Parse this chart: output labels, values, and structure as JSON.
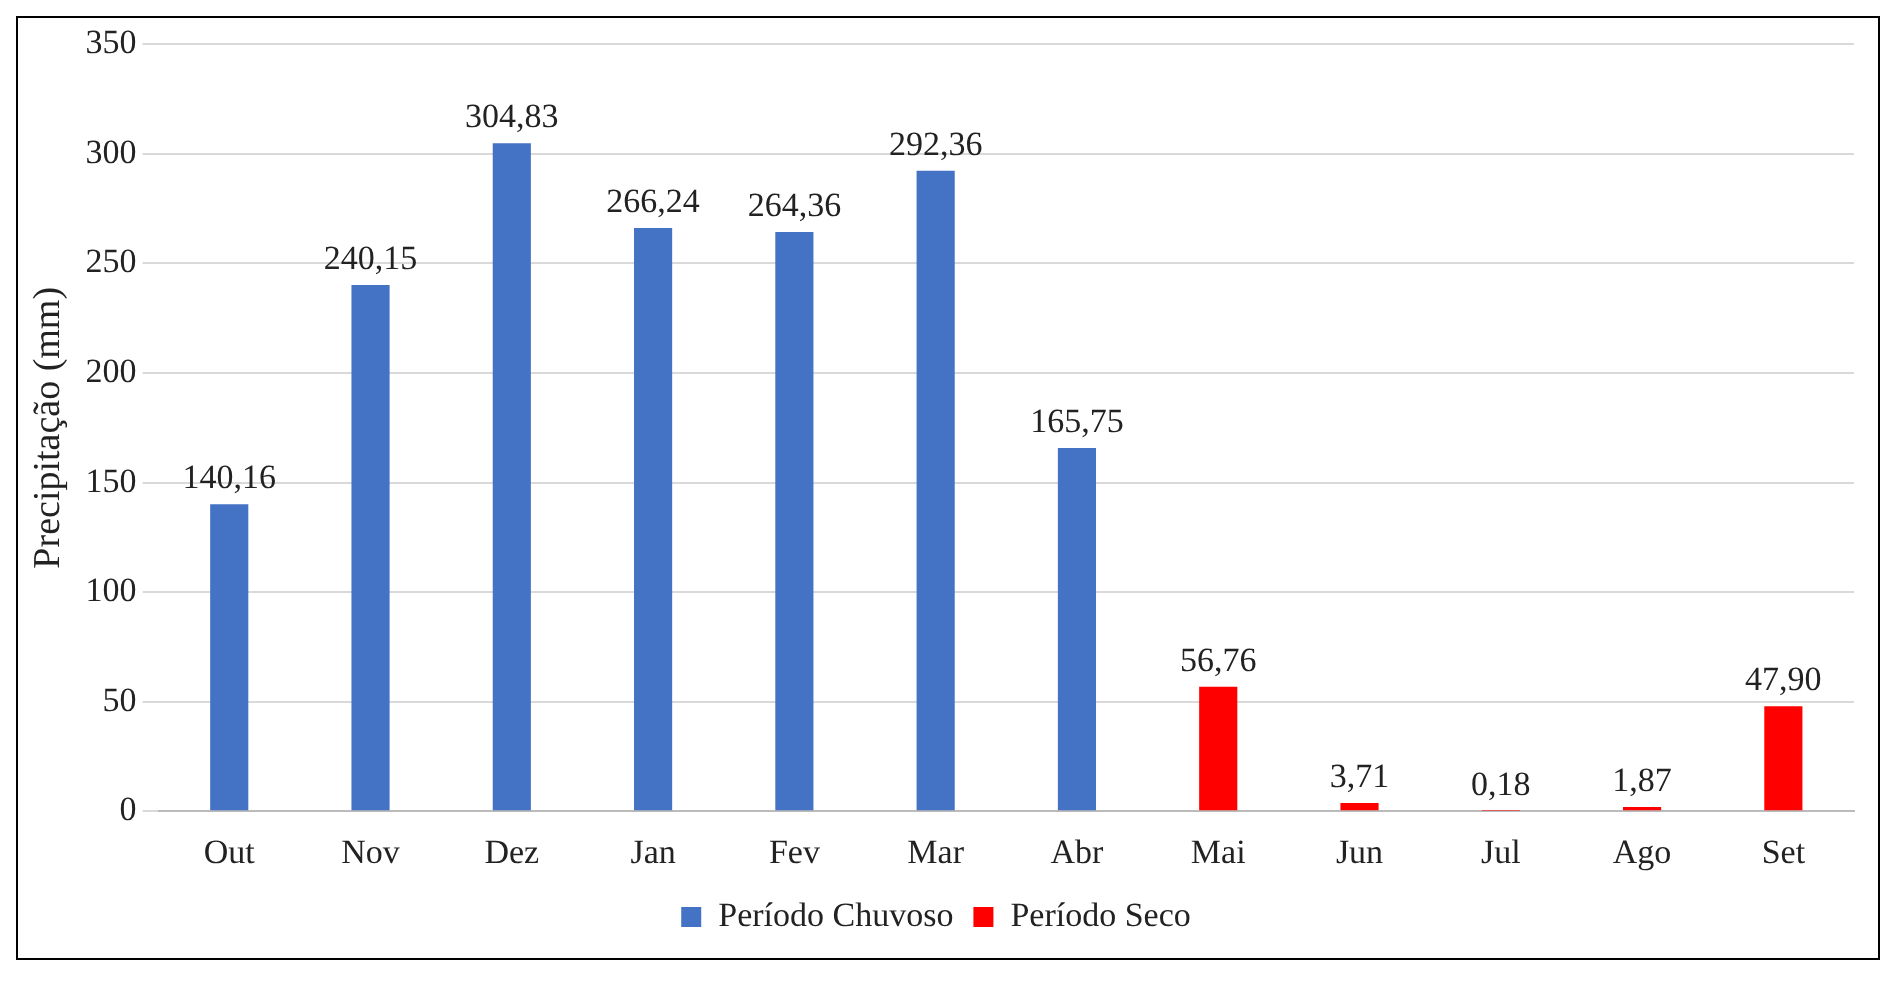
{
  "chart_data": {
    "type": "bar",
    "ylabel": "Precipitação (mm)",
    "categories": [
      "Out",
      "Nov",
      "Dez",
      "Jan",
      "Fev",
      "Mar",
      "Abr",
      "Mai",
      "Jun",
      "Jul",
      "Ago",
      "Set"
    ],
    "series": [
      {
        "name": "Período Chuvoso",
        "color": "#4472c4",
        "values": [
          140.16,
          240.15,
          304.83,
          266.24,
          264.36,
          292.36,
          165.75,
          null,
          null,
          null,
          null,
          null
        ],
        "value_labels": [
          "140,16",
          "240,15",
          "304,83",
          "266,24",
          "264,36",
          "292,36",
          "165,75",
          null,
          null,
          null,
          null,
          null
        ]
      },
      {
        "name": "Período Seco",
        "color": "#ff0000",
        "values": [
          null,
          null,
          null,
          null,
          null,
          null,
          null,
          56.76,
          3.71,
          0.18,
          1.87,
          47.9
        ],
        "value_labels": [
          null,
          null,
          null,
          null,
          null,
          null,
          null,
          "56,76",
          "3,71",
          "0,18",
          "1,87",
          "47,90"
        ]
      }
    ],
    "ylim": [
      0,
      350
    ],
    "yticks": [
      0,
      50,
      100,
      150,
      200,
      250,
      300,
      350
    ],
    "grid": "y",
    "legend": "bottom"
  }
}
